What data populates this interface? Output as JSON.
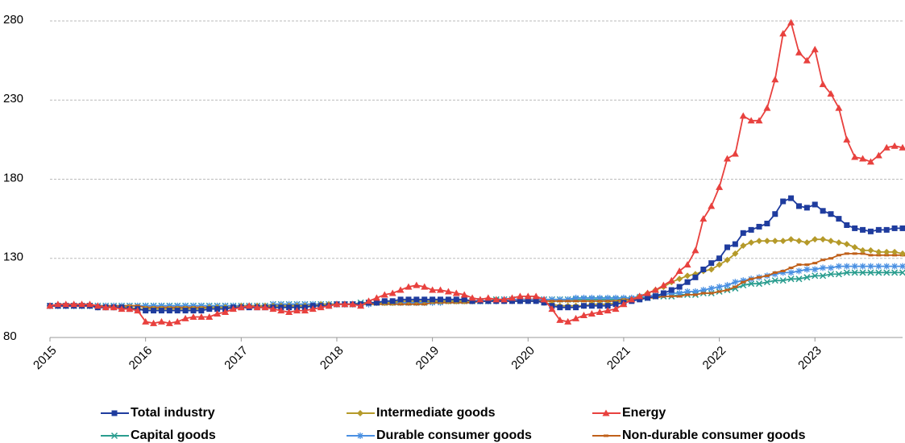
{
  "chart_data": {
    "type": "line",
    "categories": [
      "2015",
      null,
      null,
      null,
      null,
      null,
      null,
      null,
      null,
      null,
      null,
      null,
      "2016",
      null,
      null,
      null,
      null,
      null,
      null,
      null,
      null,
      null,
      null,
      null,
      "2017",
      null,
      null,
      null,
      null,
      null,
      null,
      null,
      null,
      null,
      null,
      null,
      "2018",
      null,
      null,
      null,
      null,
      null,
      null,
      null,
      null,
      null,
      null,
      null,
      "2019",
      null,
      null,
      null,
      null,
      null,
      null,
      null,
      null,
      null,
      null,
      null,
      "2020",
      null,
      null,
      null,
      null,
      null,
      null,
      null,
      null,
      null,
      null,
      null,
      "2021",
      null,
      null,
      null,
      null,
      null,
      null,
      null,
      null,
      null,
      null,
      null,
      "2022",
      null,
      null,
      null,
      null,
      null,
      null,
      null,
      null,
      null,
      null,
      null,
      "2023",
      null,
      null,
      null,
      null,
      null,
      null,
      null,
      null,
      null,
      null,
      null
    ],
    "ylim": [
      80,
      280
    ],
    "yticks": [
      80,
      130,
      180,
      230,
      280
    ],
    "grid": true,
    "legend": "bottom",
    "series": [
      {
        "name": "Total industry",
        "color": "#1f3c9e",
        "marker": "square",
        "values": [
          100,
          100,
          100,
          100,
          100,
          100,
          99,
          99,
          99,
          99,
          98,
          98,
          97,
          97,
          97,
          97,
          97,
          97,
          97,
          97,
          98,
          98,
          98,
          99,
          99,
          99,
          99,
          99,
          99,
          99,
          99,
          99,
          99,
          100,
          100,
          100,
          101,
          101,
          101,
          101,
          102,
          102,
          103,
          103,
          104,
          104,
          104,
          104,
          104,
          104,
          104,
          104,
          104,
          103,
          103,
          103,
          103,
          103,
          103,
          103,
          103,
          103,
          102,
          100,
          99,
          99,
          99,
          100,
          100,
          100,
          100,
          101,
          102,
          103,
          104,
          105,
          106,
          108,
          110,
          112,
          115,
          118,
          123,
          127,
          130,
          137,
          139,
          146,
          148,
          150,
          152,
          158,
          166,
          168,
          163,
          162,
          164,
          160,
          158,
          155,
          151,
          149,
          148,
          147,
          148,
          148,
          149,
          149
        ]
      },
      {
        "name": "Intermediate goods",
        "color": "#b59a2a",
        "marker": "diamond",
        "values": [
          100,
          100,
          100,
          100,
          100,
          100,
          99,
          99,
          99,
          99,
          99,
          98,
          98,
          98,
          98,
          98,
          98,
          98,
          98,
          98,
          99,
          99,
          99,
          99,
          100,
          100,
          100,
          100,
          100,
          100,
          100,
          100,
          100,
          100,
          101,
          101,
          101,
          101,
          101,
          101,
          102,
          102,
          102,
          102,
          103,
          103,
          103,
          103,
          103,
          103,
          103,
          103,
          103,
          103,
          103,
          103,
          103,
          103,
          103,
          103,
          103,
          103,
          102,
          101,
          100,
          100,
          100,
          100,
          101,
          101,
          101,
          102,
          103,
          104,
          106,
          108,
          110,
          112,
          115,
          117,
          119,
          120,
          122,
          123,
          126,
          129,
          133,
          138,
          140,
          141,
          141,
          141,
          141,
          142,
          141,
          140,
          142,
          142,
          141,
          140,
          139,
          137,
          135,
          135,
          134,
          134,
          134,
          133
        ]
      },
      {
        "name": "Energy",
        "color": "#e8413e",
        "marker": "triangle",
        "values": [
          100,
          101,
          101,
          101,
          101,
          101,
          100,
          99,
          99,
          98,
          98,
          97,
          90,
          89,
          90,
          89,
          90,
          92,
          93,
          93,
          93,
          95,
          96,
          98,
          99,
          100,
          99,
          99,
          98,
          97,
          96,
          97,
          97,
          98,
          99,
          100,
          101,
          101,
          101,
          100,
          103,
          105,
          107,
          108,
          110,
          112,
          113,
          112,
          110,
          110,
          109,
          108,
          107,
          105,
          104,
          105,
          104,
          104,
          105,
          106,
          106,
          106,
          104,
          98,
          91,
          90,
          92,
          94,
          95,
          96,
          97,
          98,
          101,
          104,
          106,
          108,
          110,
          113,
          116,
          122,
          126,
          135,
          155,
          163,
          175,
          193,
          196,
          220,
          217,
          217,
          225,
          243,
          272,
          279,
          260,
          255,
          262,
          240,
          234,
          225,
          205,
          194,
          193,
          191,
          195,
          200,
          201,
          200
        ]
      },
      {
        "name": "Capital goods",
        "color": "#2a9d8f",
        "marker": "cross",
        "values": [
          100,
          100,
          100,
          100,
          100,
          100,
          100,
          100,
          100,
          100,
          100,
          100,
          100,
          100,
          100,
          100,
          100,
          100,
          100,
          100,
          100,
          100,
          100,
          100,
          100,
          100,
          100,
          100,
          101,
          101,
          101,
          101,
          101,
          101,
          101,
          101,
          101,
          101,
          101,
          102,
          102,
          102,
          102,
          102,
          102,
          102,
          102,
          102,
          103,
          103,
          103,
          103,
          103,
          103,
          103,
          103,
          104,
          104,
          104,
          104,
          104,
          104,
          104,
          104,
          104,
          104,
          104,
          104,
          104,
          104,
          104,
          104,
          104,
          104,
          105,
          105,
          106,
          106,
          106,
          107,
          107,
          107,
          108,
          108,
          109,
          110,
          111,
          113,
          114,
          114,
          115,
          116,
          116,
          117,
          117,
          118,
          119,
          119,
          120,
          120,
          121,
          121,
          121,
          121,
          121,
          121,
          121,
          121
        ]
      },
      {
        "name": "Durable consumer goods",
        "color": "#4a90e2",
        "marker": "star",
        "values": [
          100,
          100,
          100,
          100,
          100,
          100,
          100,
          100,
          100,
          100,
          100,
          100,
          100,
          100,
          100,
          100,
          100,
          100,
          100,
          100,
          100,
          100,
          100,
          100,
          100,
          100,
          100,
          100,
          101,
          101,
          101,
          101,
          101,
          101,
          101,
          101,
          101,
          101,
          101,
          101,
          101,
          102,
          102,
          102,
          102,
          102,
          102,
          102,
          102,
          102,
          103,
          103,
          103,
          103,
          103,
          103,
          103,
          104,
          104,
          104,
          104,
          104,
          104,
          104,
          104,
          104,
          105,
          105,
          105,
          105,
          105,
          105,
          105,
          105,
          106,
          106,
          107,
          107,
          108,
          108,
          109,
          109,
          110,
          111,
          112,
          113,
          115,
          116,
          117,
          118,
          119,
          120,
          121,
          121,
          122,
          123,
          123,
          124,
          124,
          125,
          125,
          125,
          125,
          125,
          125,
          125,
          125,
          125
        ]
      },
      {
        "name": "Non-durable consumer goods",
        "color": "#c0601a",
        "marker": "dash",
        "values": [
          100,
          100,
          100,
          100,
          100,
          100,
          100,
          100,
          100,
          100,
          100,
          100,
          99,
          99,
          99,
          99,
          99,
          99,
          99,
          99,
          99,
          99,
          99,
          99,
          99,
          99,
          99,
          99,
          100,
          100,
          100,
          100,
          100,
          100,
          100,
          100,
          101,
          101,
          101,
          101,
          101,
          101,
          101,
          101,
          101,
          101,
          101,
          101,
          102,
          102,
          102,
          102,
          102,
          102,
          103,
          103,
          103,
          103,
          103,
          103,
          103,
          103,
          103,
          103,
          103,
          103,
          103,
          103,
          103,
          103,
          103,
          103,
          104,
          104,
          104,
          105,
          105,
          106,
          106,
          106,
          107,
          107,
          108,
          108,
          109,
          110,
          112,
          115,
          117,
          118,
          119,
          121,
          122,
          124,
          126,
          126,
          127,
          129,
          130,
          132,
          133,
          133,
          133,
          132,
          132,
          132,
          132,
          132
        ]
      }
    ]
  }
}
